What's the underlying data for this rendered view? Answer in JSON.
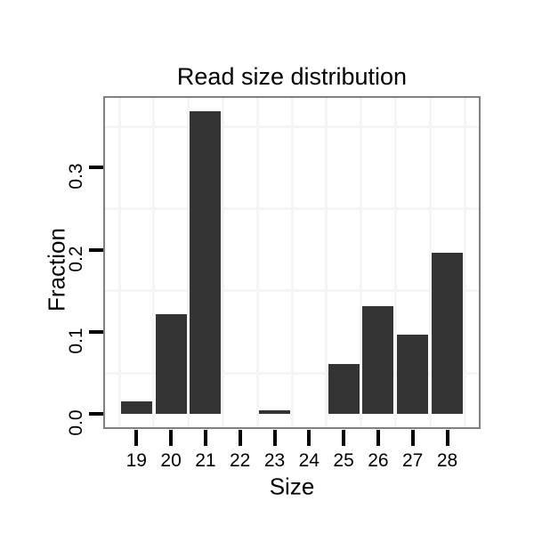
{
  "chart_data": {
    "type": "bar",
    "title": "Read size distribution",
    "xlabel": "Size",
    "ylabel": "Fraction",
    "categories": [
      "19",
      "20",
      "21",
      "22",
      "23",
      "24",
      "25",
      "26",
      "27",
      "28"
    ],
    "values": [
      0.016,
      0.122,
      0.369,
      0.0,
      0.005,
      0.0,
      0.061,
      0.131,
      0.097,
      0.196
    ],
    "y_ticks": [
      "0.0",
      "0.1",
      "0.2",
      "0.3"
    ],
    "y_tick_values": [
      0.0,
      0.1,
      0.2,
      0.3
    ],
    "minor_gridlines_y": [
      0.05,
      0.15,
      0.25,
      0.35
    ],
    "ylim": [
      0,
      0.385
    ],
    "grid": "minor gridlines only, light gray on white panel",
    "legend": "none",
    "bar_color": "#333333",
    "panel_border_color": "#808080",
    "gridline_color": "#f5f5f5",
    "tick_color": "#000000",
    "text_color": "#000000",
    "background_color": "#ffffff"
  }
}
